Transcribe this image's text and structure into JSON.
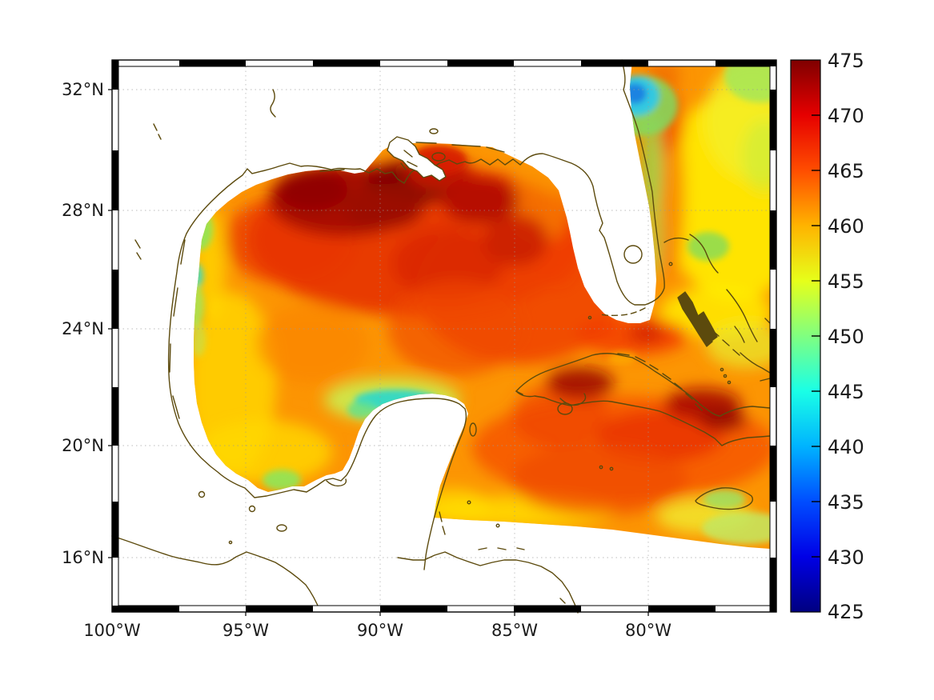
{
  "figure": {
    "kind": "geographic heatmap with colorbar",
    "background_color": "#ffffff",
    "coastline_color": "#5c4a0d",
    "no_data_color": "#ffffff",
    "frame_style": "alternating black/white checkered map border"
  },
  "chart_data": {
    "type": "heatmap",
    "region": "Gulf of Mexico, Florida and northwestern Caribbean Sea",
    "x_axis": {
      "tick_labels": [
        "100°W",
        "95°W",
        "90°W",
        "85°W",
        "80°W"
      ],
      "range_deg_west": [
        100,
        75.5
      ],
      "grid_interval_deg": 5
    },
    "y_axis": {
      "tick_labels": [
        "32°N",
        "28°N",
        "24°N",
        "20°N",
        "16°N"
      ],
      "range_deg_north": [
        14.3,
        32.8
      ],
      "grid_interval_deg": 4
    },
    "grid": {
      "visible": true,
      "style": "dotted",
      "color": "#999999"
    },
    "colorbar": {
      "min": 425,
      "max": 475,
      "tick_step": 5,
      "tick_labels": [
        "475",
        "470",
        "465",
        "460",
        "455",
        "450",
        "445",
        "440",
        "435",
        "430",
        "425"
      ],
      "colormap": "jet",
      "stops": [
        {
          "value": 475,
          "color": "#7f0000"
        },
        {
          "value": 470,
          "color": "#e60000"
        },
        {
          "value": 465,
          "color": "#ff4d00"
        },
        {
          "value": 460,
          "color": "#ffb300"
        },
        {
          "value": 455,
          "color": "#e6ff1a"
        },
        {
          "value": 450,
          "color": "#80ff80"
        },
        {
          "value": 445,
          "color": "#1affe6"
        },
        {
          "value": 440,
          "color": "#00b3ff"
        },
        {
          "value": 435,
          "color": "#004dff"
        },
        {
          "value": 430,
          "color": "#0000e6"
        },
        {
          "value": 425,
          "color": "#000080"
        }
      ]
    },
    "sample_grid": {
      "note": "approximate field values read from colors; null = land or no data",
      "lons_deg_west": [
        97.5,
        95,
        92.5,
        90,
        87.5,
        85,
        82.5,
        80,
        77.5
      ],
      "lats_deg_north": [
        31,
        29,
        27,
        25,
        23,
        21,
        19,
        17
      ],
      "values": [
        [
          null,
          null,
          null,
          null,
          null,
          null,
          null,
          443,
          456
        ],
        [
          null,
          470,
          472,
          471,
          468,
          466,
          null,
          459,
          457
        ],
        [
          451,
          463,
          468,
          470,
          467,
          465,
          466,
          451,
          457
        ],
        [
          457,
          461,
          463,
          465,
          466,
          467,
          466,
          461,
          457
        ],
        [
          454,
          459,
          461,
          459,
          463,
          467,
          470,
          466,
          458
        ],
        [
          452,
          456,
          447,
          446,
          null,
          466,
          468,
          468,
          470
        ],
        [
          451,
          455,
          458,
          459,
          461,
          462,
          464,
          463,
          455
        ],
        [
          null,
          null,
          null,
          null,
          null,
          null,
          null,
          458,
          452
        ]
      ]
    },
    "features": [
      {
        "name": "dark-red maximum",
        "location": "north-central Gulf near Mississippi delta",
        "approx_value": 473
      },
      {
        "name": "cold blue-cyan spot",
        "location": "Atlantic off northeast Florida (~30.5N 80.5W)",
        "approx_value": 442
      },
      {
        "name": "cool cyan arc",
        "location": "Campeche Bank north of Yucatan",
        "approx_value": 446
      },
      {
        "name": "coastal cool green spots",
        "location": "south Texas and Veracruz coast",
        "approx_value": 450
      },
      {
        "name": "warm dark-red patches",
        "location": "western and southeastern Cuba",
        "approx_value": 471
      },
      {
        "name": "cool green spot",
        "location": "Jamaica",
        "approx_value": 452
      },
      {
        "name": "yellow band",
        "location": "open Atlantic east of Florida",
        "approx_value": 456
      }
    ]
  }
}
